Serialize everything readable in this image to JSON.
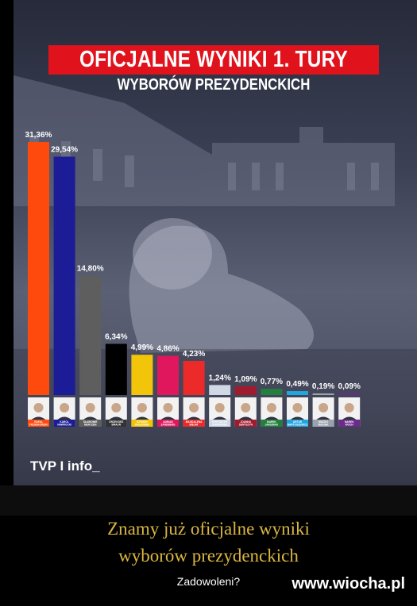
{
  "title": "OFICJALNE WYNIKI 1. TURY",
  "subtitle": "WYBORÓW PREZYDENCKICH",
  "logo": "TVP I info_",
  "headline_line1": "Znamy już oficjalne wyniki",
  "headline_line2": "wyborów prezydenckich",
  "subtext": "Zadowoleni?",
  "watermark": "www.wiocha.pl",
  "colors": {
    "title_red": "#e0131d",
    "headline_gold": "#d9b640"
  },
  "chart_data": {
    "type": "bar",
    "categories": [
      "RAFAŁ TRZASKOWSKI",
      "KAROL NAWROCKI",
      "SŁAWOMIR MENTZEN",
      "GRZEGORZ BRAUN",
      "SZYMON HOŁOWNIA",
      "ADRIAN ZANDBERG",
      "MAGDALENA BIEJAT",
      "KRZYSZTOF STANOWSKI",
      "JOANNA SENYSZYN",
      "MAREK JAKUBIAK",
      "ARTUR BARTOSZEWICZ",
      "MACIEJ MACIAK",
      "MAREK WOCH"
    ],
    "labels": [
      "31,36%",
      "29,54%",
      "14,80%",
      "6,34%",
      "4,99%",
      "4,86%",
      "4,23%",
      "1,24%",
      "1,09%",
      "0,77%",
      "0,49%",
      "0,19%",
      "0,09%"
    ],
    "values": [
      31.36,
      29.54,
      14.8,
      6.34,
      4.99,
      4.86,
      4.23,
      1.24,
      1.09,
      0.77,
      0.49,
      0.19,
      0.09
    ],
    "colors": [
      "#ff4a0d",
      "#1c1c96",
      "#5e5e5e",
      "#000000",
      "#f2c40a",
      "#e0175c",
      "#ec2a2a",
      "#cfd8e4",
      "#a01b2e",
      "#237f3e",
      "#20a6e0",
      "#9aa3ad",
      "#6b2b8a"
    ],
    "ylim": [
      0,
      31.36
    ],
    "grid": false,
    "legend": "none"
  }
}
